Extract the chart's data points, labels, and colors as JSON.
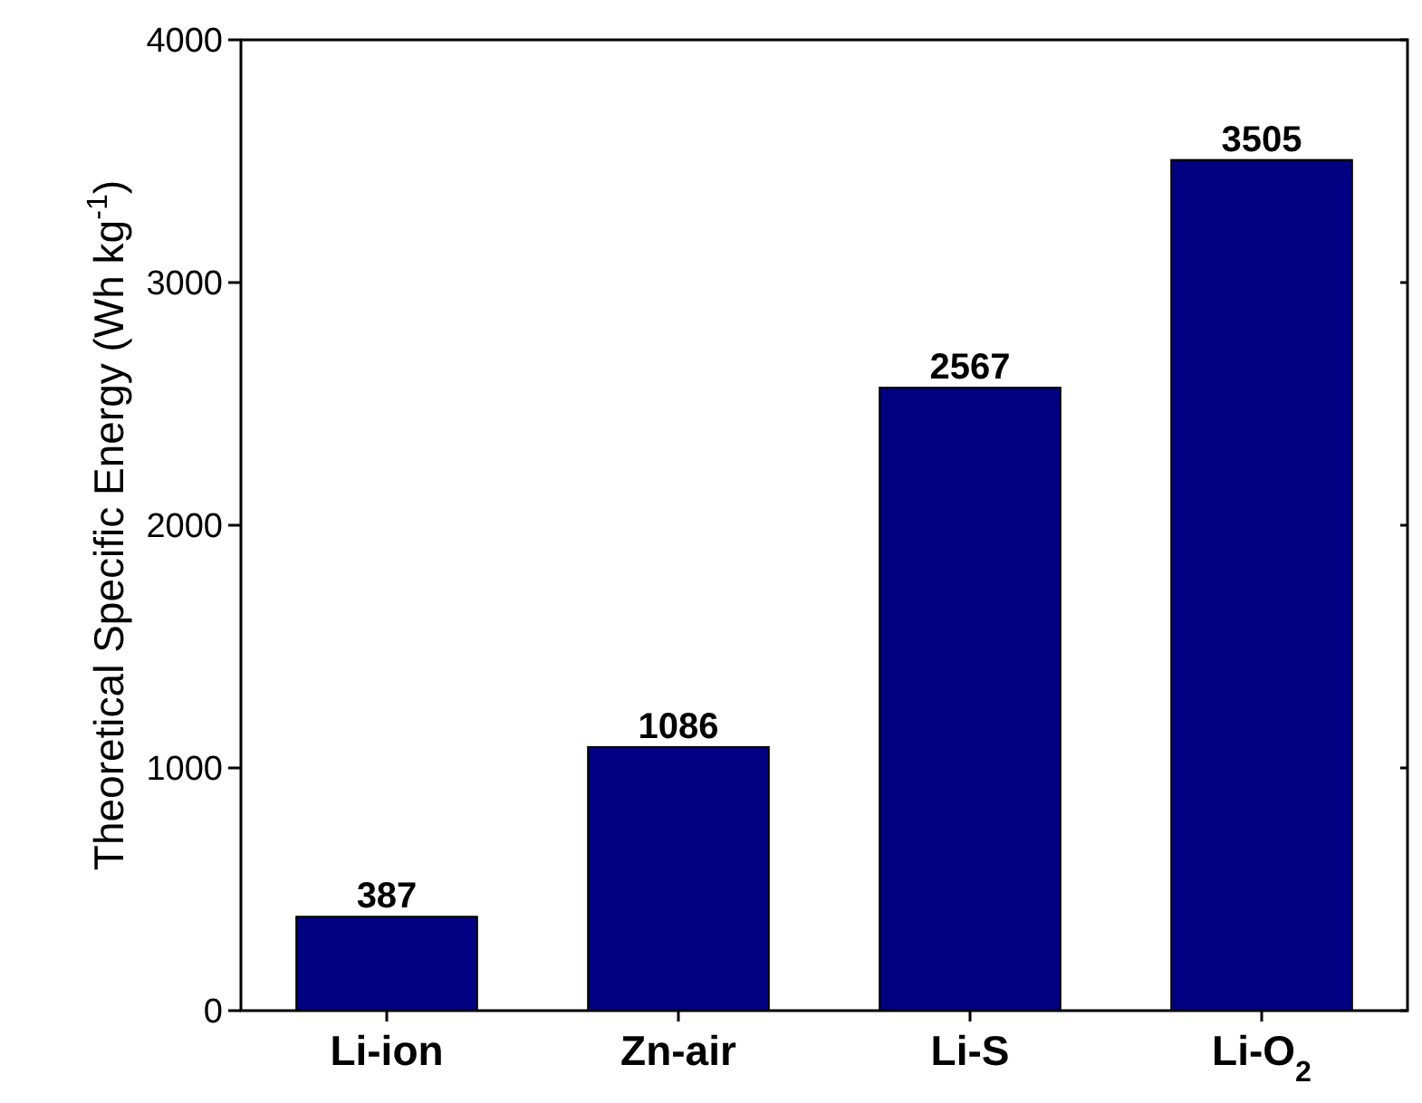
{
  "chart_data": {
    "type": "bar",
    "ylabel": "Theoretical Specific Energy (Wh kg$^{-1}$)",
    "categories": [
      "Li-ion",
      "Zn-air",
      "Li-S",
      "Li-O$_{2}$"
    ],
    "values": [
      387,
      1086,
      2567,
      3505
    ],
    "color": "#000080",
    "ylim": [
      0,
      4000
    ],
    "yticks": [
      0,
      1000,
      2000,
      3000,
      4000
    ],
    "data_labels": true,
    "grid": false
  }
}
